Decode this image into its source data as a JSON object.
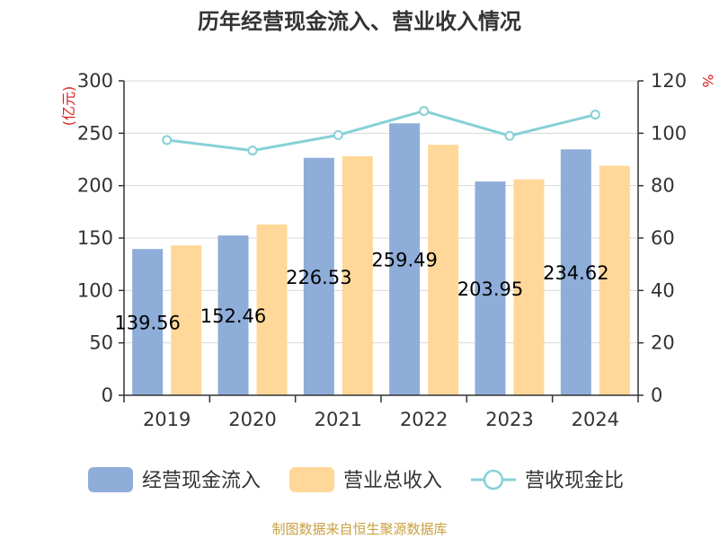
{
  "chart_data": {
    "type": "bar",
    "title": "历年经营现金流入、营业收入情况",
    "categories": [
      "2019",
      "2020",
      "2021",
      "2022",
      "2023",
      "2024"
    ],
    "series": [
      {
        "name": "经营现金流入",
        "type": "bar",
        "axis": "left",
        "color": "#8eadd9",
        "values": [
          139.56,
          152.46,
          226.53,
          259.49,
          203.95,
          234.62
        ]
      },
      {
        "name": "营业总收入",
        "type": "bar",
        "axis": "left",
        "color": "#ffd899",
        "values": [
          143,
          163,
          228,
          239,
          206,
          219
        ]
      },
      {
        "name": "营收现金比",
        "type": "line",
        "axis": "right",
        "color": "#85d1d6",
        "values": [
          97.4,
          93.4,
          99.3,
          108.5,
          99.0,
          107.1
        ]
      }
    ],
    "data_labels": [
      "139.56",
      "152.46",
      "226.53",
      "259.49",
      "203.95",
      "234.62"
    ],
    "y_left": {
      "unit": "(亿元)",
      "min": 0,
      "max": 300,
      "ticks": [
        0,
        50,
        100,
        150,
        200,
        250,
        300
      ]
    },
    "y_right": {
      "unit": "%",
      "min": 0,
      "max": 120,
      "ticks": [
        0,
        20,
        40,
        60,
        80,
        100,
        120
      ]
    },
    "legend": [
      "经营现金流入",
      "营业总收入",
      "营收现金比"
    ],
    "grid": true
  },
  "source": "制图数据来自恒生聚源数据库",
  "colors": {
    "unit": "#e02020",
    "source": "#c8a040",
    "axis": "#333333",
    "grid": "#d8d8d8"
  }
}
